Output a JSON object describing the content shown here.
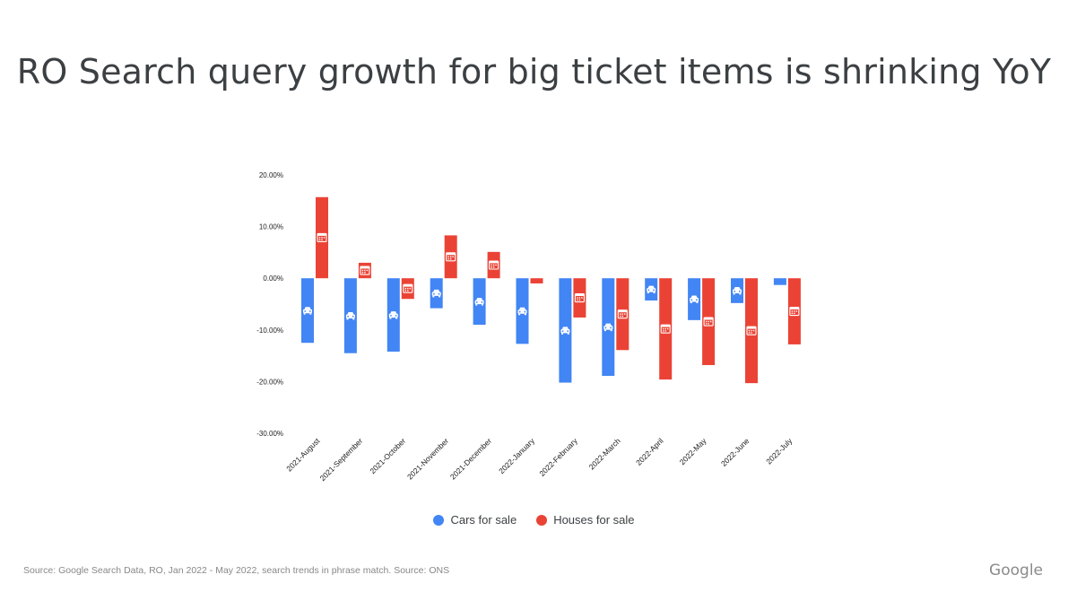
{
  "slide": {
    "title": "RO Search query growth for big ticket items is shrinking YoY",
    "source": "Source: Google Search Data, RO, Jan 2022 - May 2022, search trends in phrase match. Source: ONS",
    "brand": "Google"
  },
  "colors": {
    "cars": "#4285f4",
    "houses": "#ea4335"
  },
  "icons": {
    "cars": "car-icon",
    "houses": "house-calendar-icon"
  },
  "chart_data": {
    "type": "bar",
    "categories": [
      "2021-August",
      "2021-September",
      "2021-October",
      "2021-November",
      "2021-December",
      "2022-January",
      "2022-February",
      "2022-March",
      "2022-April",
      "2022-May",
      "2022-June",
      "2022-July"
    ],
    "series": [
      {
        "name": "Cars for sale",
        "values": [
          -12.5,
          -14.5,
          -14.2,
          -5.8,
          -9.0,
          -12.7,
          -20.2,
          -18.9,
          -4.3,
          -8.1,
          -4.8,
          -1.3
        ]
      },
      {
        "name": "Houses for sale",
        "values": [
          15.7,
          3.0,
          -4.0,
          8.3,
          5.1,
          -1.0,
          -7.6,
          -13.9,
          -19.6,
          -16.8,
          -20.3,
          -12.8
        ]
      }
    ],
    "yticks": [
      "20.00%",
      "10.00%",
      "0.00%",
      "-10.00%",
      "-20.00%",
      "-30.00%"
    ],
    "ylim": [
      -30,
      20
    ],
    "legend_position": "bottom",
    "grid": false
  }
}
